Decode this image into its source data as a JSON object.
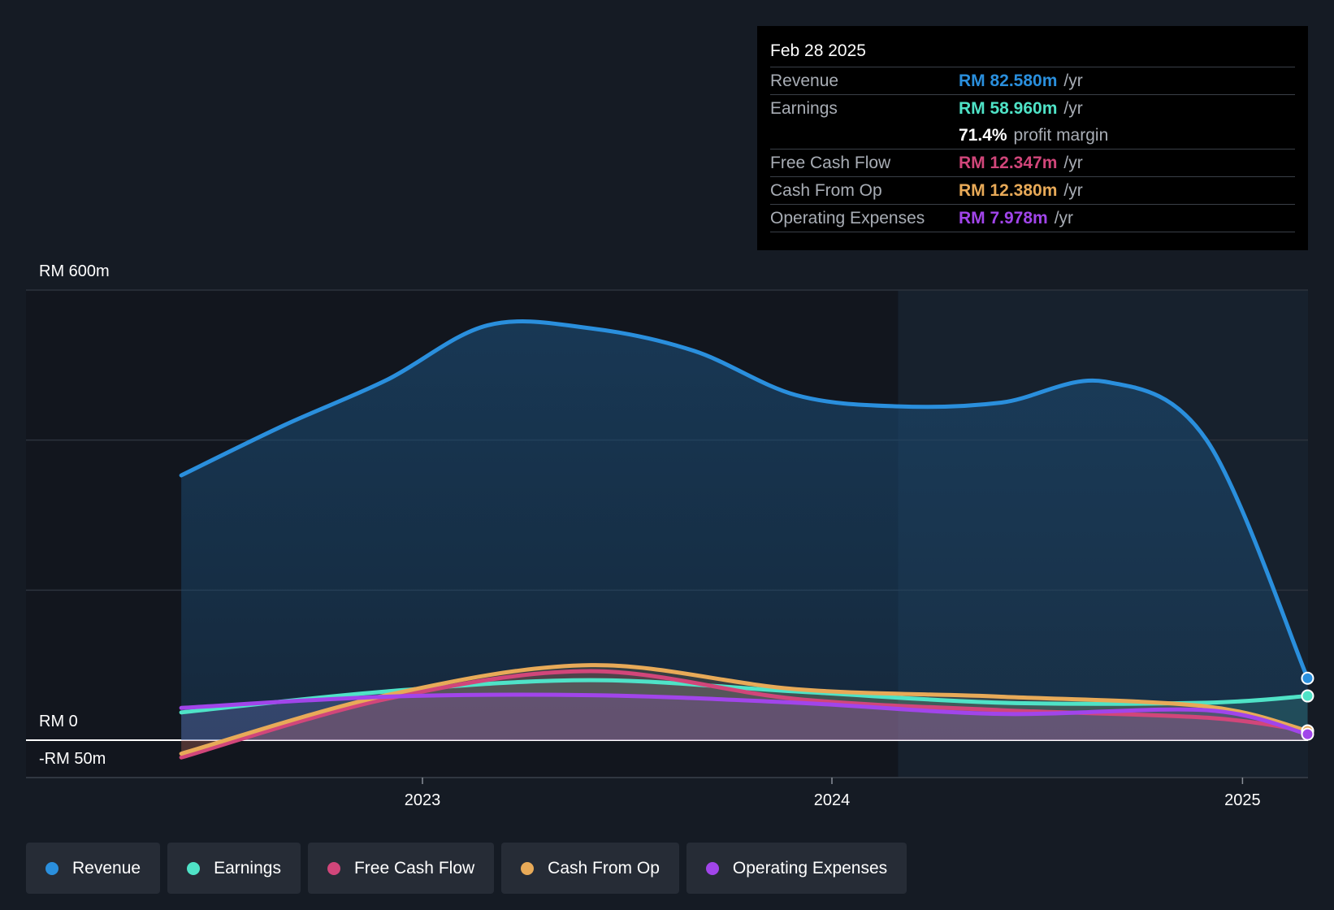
{
  "chart_data": {
    "type": "area",
    "x_axis_ticks": [
      "2023",
      "2024",
      "2025"
    ],
    "y_axis_labels": {
      "top": "RM 600m",
      "zero": "RM 0",
      "bottom": "-RM 50m"
    },
    "ylim": [
      -50,
      600
    ],
    "grid": true,
    "series": [
      {
        "name": "Revenue",
        "color": "#2a8fdd",
        "x": [
          "2022-05-31",
          "2022-08-31",
          "2022-11-30",
          "2023-02-28",
          "2023-05-31",
          "2023-08-31",
          "2023-11-30",
          "2024-02-29",
          "2024-05-31",
          "2024-08-31",
          "2024-11-30",
          "2025-02-28"
        ],
        "values": [
          353,
          420,
          480,
          553,
          549,
          519,
          460,
          445,
          450,
          478,
          400,
          82.58
        ]
      },
      {
        "name": "Earnings",
        "color": "#4fe3c7",
        "x": [
          "2022-05-31",
          "2022-11-30",
          "2023-05-31",
          "2023-11-30",
          "2024-05-31",
          "2024-11-30",
          "2025-02-28"
        ],
        "values": [
          37,
          65,
          80,
          65,
          50,
          50,
          58.96
        ]
      },
      {
        "name": "Free Cash Flow",
        "color": "#d1467a",
        "x": [
          "2022-05-31",
          "2022-11-30",
          "2023-05-31",
          "2023-11-30",
          "2024-05-31",
          "2024-11-30",
          "2025-02-28"
        ],
        "values": [
          -23,
          55,
          92,
          55,
          40,
          30,
          12.347
        ]
      },
      {
        "name": "Cash From Op",
        "color": "#e8aa58",
        "x": [
          "2022-05-31",
          "2022-11-30",
          "2023-05-31",
          "2023-11-30",
          "2024-05-31",
          "2024-11-30",
          "2025-02-28"
        ],
        "values": [
          -18,
          60,
          100,
          68,
          58,
          45,
          12.38
        ]
      },
      {
        "name": "Operating Expenses",
        "color": "#a145ea",
        "x": [
          "2022-05-31",
          "2022-11-30",
          "2023-05-31",
          "2023-11-30",
          "2024-05-31",
          "2024-11-30",
          "2025-02-28"
        ],
        "values": [
          43,
          58,
          60,
          50,
          35,
          40,
          7.978
        ]
      }
    ]
  },
  "tooltip": {
    "date": "Feb 28 2025",
    "rows": [
      {
        "label": "Revenue",
        "value": "RM 82.580m",
        "unit": "/yr",
        "color": "#2a8fdd"
      },
      {
        "label": "Earnings",
        "value": "RM 58.960m",
        "unit": "/yr",
        "color": "#4fe3c7"
      },
      {
        "label": "",
        "value": "71.4%",
        "unit": "profit margin",
        "color": "#ffffff"
      },
      {
        "label": "Free Cash Flow",
        "value": "RM 12.347m",
        "unit": "/yr",
        "color": "#d1467a"
      },
      {
        "label": "Cash From Op",
        "value": "RM 12.380m",
        "unit": "/yr",
        "color": "#e8aa58"
      },
      {
        "label": "Operating Expenses",
        "value": "RM 7.978m",
        "unit": "/yr",
        "color": "#a145ea"
      }
    ]
  },
  "legend": [
    {
      "label": "Revenue",
      "color": "#2a8fdd"
    },
    {
      "label": "Earnings",
      "color": "#4fe3c7"
    },
    {
      "label": "Free Cash Flow",
      "color": "#d1467a"
    },
    {
      "label": "Cash From Op",
      "color": "#e8aa58"
    },
    {
      "label": "Operating Expenses",
      "color": "#a145ea"
    }
  ]
}
